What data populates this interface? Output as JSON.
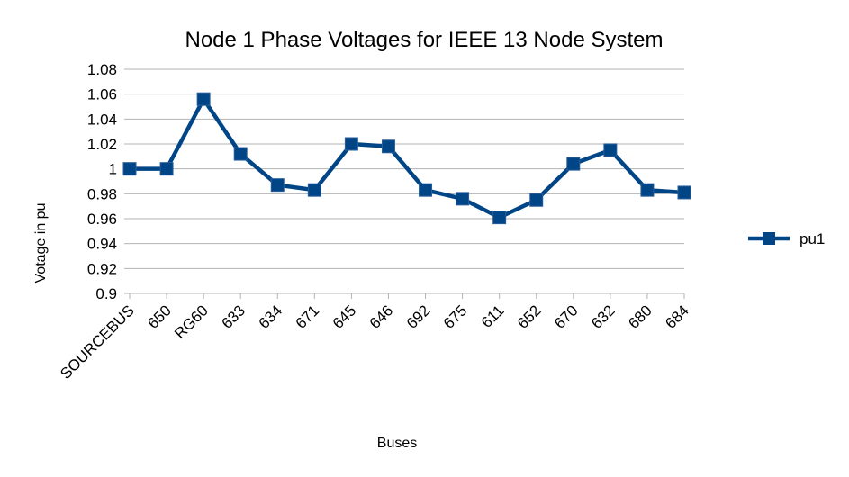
{
  "chart_data": {
    "type": "line",
    "title": "Node 1 Phase Voltages for IEEE 13 Node System",
    "xlabel": "Buses",
    "ylabel": "Votage in pu",
    "categories": [
      "SOURCEBUS",
      "650",
      "RG60",
      "633",
      "634",
      "671",
      "645",
      "646",
      "692",
      "675",
      "611",
      "652",
      "670",
      "632",
      "680",
      "684"
    ],
    "series": [
      {
        "name": "pu1",
        "values": [
          1.0,
          1.0,
          1.056,
          1.012,
          0.987,
          0.983,
          1.02,
          1.018,
          0.983,
          0.976,
          0.961,
          0.975,
          1.004,
          1.015,
          0.983,
          0.981
        ]
      }
    ],
    "ylim": [
      0.9,
      1.08
    ],
    "yticks": [
      "0.9",
      "0.92",
      "0.94",
      "0.96",
      "0.98",
      "1",
      "1.02",
      "1.04",
      "1.06",
      "1.08"
    ],
    "grid": true,
    "legend_position": "right",
    "colors": {
      "series": "#004586",
      "grid": "#b3b3b3"
    }
  }
}
